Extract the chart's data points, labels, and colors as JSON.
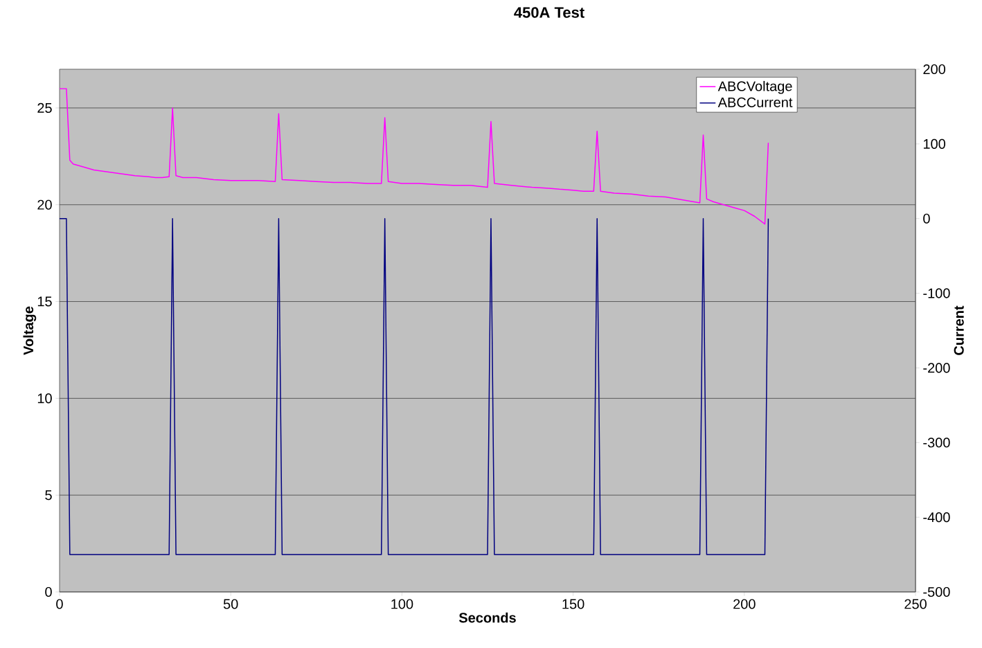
{
  "chart_data": {
    "type": "line",
    "title": "450A Test",
    "xlabel": "Seconds",
    "ylabel": "Voltage",
    "y2label": "Current",
    "xlim": [
      0,
      250
    ],
    "xticks": [
      0,
      50,
      100,
      150,
      200,
      250
    ],
    "ylim": [
      0,
      27
    ],
    "yticks": [
      0,
      5,
      10,
      15,
      20,
      25
    ],
    "y2lim": [
      -500,
      200
    ],
    "y2ticks": [
      -500,
      -400,
      -300,
      -200,
      -100,
      0,
      100,
      200
    ],
    "grid": "y",
    "legend": "top right",
    "marker": "none",
    "line_style": "solid",
    "series": [
      {
        "name": "ABCVoltage",
        "color": "#ff00ff",
        "x": [
          0,
          2,
          3,
          4,
          6,
          8,
          10,
          14,
          18,
          22,
          26,
          28,
          30,
          32,
          33,
          34,
          36,
          40,
          45,
          50,
          58,
          63,
          64,
          65,
          70,
          75,
          80,
          85,
          90,
          94,
          95,
          96,
          100,
          105,
          110,
          115,
          120,
          125,
          126,
          127,
          132,
          138,
          143,
          146,
          150,
          153,
          156,
          157,
          158,
          162,
          167,
          172,
          177,
          182,
          187,
          188,
          189,
          191,
          194,
          197,
          200,
          203,
          206,
          207
        ],
        "values": [
          26.0,
          26.0,
          22.3,
          22.1,
          22.0,
          21.9,
          21.8,
          21.7,
          21.6,
          21.5,
          21.45,
          21.4,
          21.4,
          21.45,
          25.0,
          21.5,
          21.4,
          21.4,
          21.3,
          21.25,
          21.25,
          21.2,
          24.7,
          21.3,
          21.25,
          21.2,
          21.15,
          21.15,
          21.1,
          21.1,
          24.5,
          21.2,
          21.1,
          21.1,
          21.05,
          21.0,
          21.0,
          20.9,
          24.3,
          21.1,
          21.0,
          20.9,
          20.85,
          20.8,
          20.75,
          20.7,
          20.7,
          23.8,
          20.7,
          20.6,
          20.55,
          20.45,
          20.4,
          20.25,
          20.1,
          23.6,
          20.3,
          20.15,
          20.0,
          19.85,
          19.7,
          19.4,
          19.0,
          23.2
        ]
      },
      {
        "name": "ABCCurrent",
        "color": "#000080",
        "axis": "y2",
        "x": [
          0,
          2,
          3,
          32,
          33,
          34,
          63,
          64,
          65,
          94,
          95,
          96,
          125,
          126,
          127,
          156,
          157,
          158,
          187,
          188,
          189,
          206,
          207
        ],
        "values": [
          0,
          0,
          -450,
          -450,
          0,
          -450,
          -450,
          0,
          -450,
          -450,
          0,
          -450,
          -450,
          0,
          -450,
          -450,
          0,
          -450,
          -450,
          0,
          -450,
          -450,
          0
        ]
      }
    ]
  }
}
